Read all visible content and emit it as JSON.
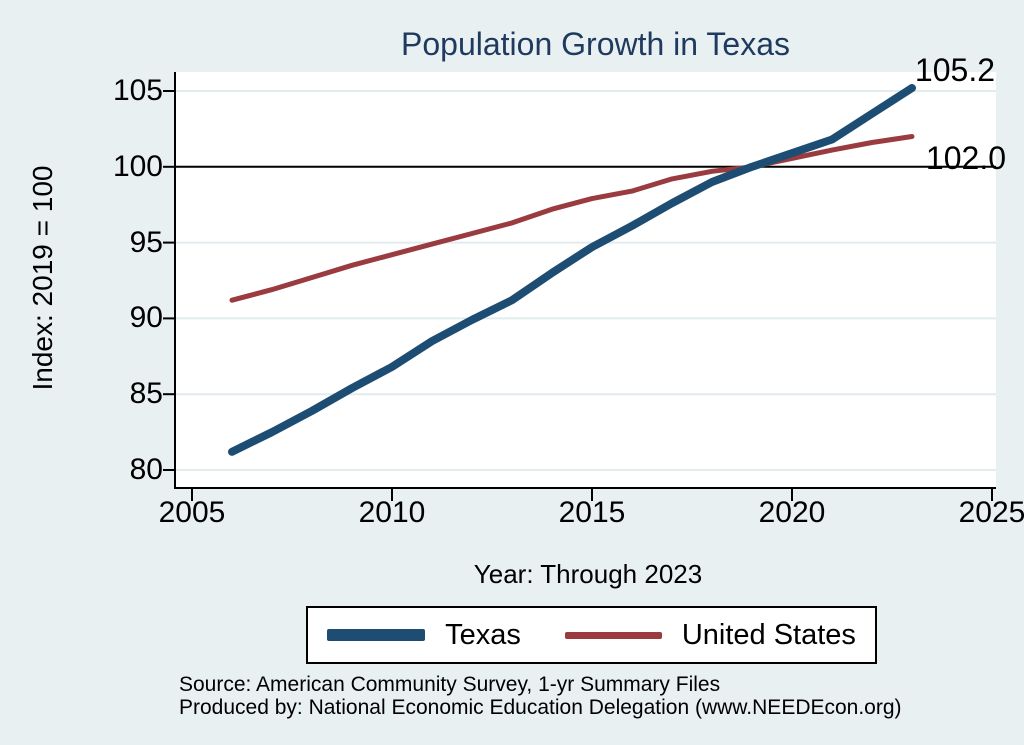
{
  "chart": {
    "source_line1": "Source: American Community Survey, 1-yr Summary Files",
    "source_line2": "Produced by: National Economic Education Delegation (www.NEEDEcon.org)",
    "colors": {
      "background": "#e9f0f2",
      "plot_background": "#ffffff",
      "gridline": "#e2ecef",
      "title_text": "#1f3a5f",
      "axis": "#000000",
      "reference_line": "#000000",
      "texas_line": "#1e4d73",
      "us_line": "#9a3b40"
    }
  },
  "chart_data": {
    "type": "line",
    "title": "Population Growth in Texas",
    "xlabel": "Year: Through 2023",
    "ylabel": "Index: 2019 = 100",
    "xlim": [
      2005,
      2025
    ],
    "ylim": [
      80,
      105
    ],
    "x_ticks": [
      2005,
      2010,
      2015,
      2020,
      2025
    ],
    "y_ticks": [
      80,
      85,
      90,
      95,
      100,
      105
    ],
    "grid": true,
    "reference_line_y": 100,
    "legend_position": "bottom",
    "series": [
      {
        "name": "Texas",
        "color": "#1e4d73",
        "line_width": 8,
        "end_label": "105.2",
        "x": [
          2006,
          2007,
          2008,
          2009,
          2010,
          2011,
          2012,
          2013,
          2014,
          2015,
          2016,
          2017,
          2018,
          2019,
          2021,
          2022,
          2023
        ],
        "values": [
          81.2,
          82.5,
          83.9,
          85.4,
          86.8,
          88.5,
          89.9,
          91.2,
          93.0,
          94.7,
          96.1,
          97.6,
          99.0,
          100.0,
          101.8,
          103.5,
          105.2
        ]
      },
      {
        "name": "United States",
        "color": "#9a3b40",
        "line_width": 5,
        "end_label": "102.0",
        "x": [
          2006,
          2007,
          2008,
          2009,
          2010,
          2011,
          2012,
          2013,
          2014,
          2015,
          2016,
          2017,
          2018,
          2019,
          2021,
          2022,
          2023
        ],
        "values": [
          91.2,
          91.9,
          92.7,
          93.5,
          94.2,
          94.9,
          95.6,
          96.3,
          97.2,
          97.9,
          98.4,
          99.2,
          99.7,
          100.0,
          101.1,
          101.6,
          102.0
        ]
      }
    ]
  }
}
